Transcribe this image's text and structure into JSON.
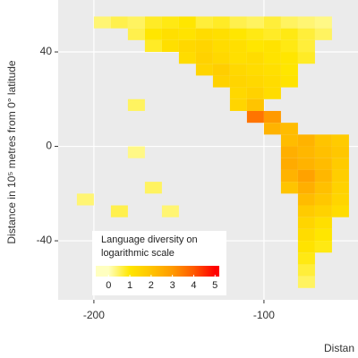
{
  "chart_data": {
    "type": "heatmap",
    "ylabel": "Distance in 10⁵ metres from 0° latitude",
    "xlabel": "Distan",
    "xlim": [
      -221,
      -44.7
    ],
    "ylim": [
      -65,
      62
    ],
    "xticks": [
      -200,
      -100
    ],
    "yticks": [
      40,
      0,
      -40
    ],
    "grid": true,
    "cells": [
      [
        -195,
        52.5,
        0.4
      ],
      [
        -185,
        52.5,
        0.6
      ],
      [
        -175,
        52.5,
        0.5
      ],
      [
        -165,
        52.5,
        0.8
      ],
      [
        -155,
        52.5,
        0.9
      ],
      [
        -145,
        52.5,
        1
      ],
      [
        -135,
        52.5,
        0.7
      ],
      [
        -125,
        52.5,
        0.8
      ],
      [
        -115,
        52.5,
        0.6
      ],
      [
        -105,
        52.5,
        0.5
      ],
      [
        -95,
        52.5,
        0.7
      ],
      [
        -85,
        52.5,
        0.5
      ],
      [
        -75,
        52.5,
        0.4
      ],
      [
        -65,
        52.5,
        0.3
      ],
      [
        -175,
        47.5,
        0.6
      ],
      [
        -165,
        47.5,
        1
      ],
      [
        -155,
        47.5,
        1.2
      ],
      [
        -145,
        47.5,
        1.1
      ],
      [
        -135,
        47.5,
        1.3
      ],
      [
        -125,
        47.5,
        1.2
      ],
      [
        -115,
        47.5,
        1
      ],
      [
        -105,
        47.5,
        0.9
      ],
      [
        -95,
        47.5,
        0.8
      ],
      [
        -85,
        47.5,
        0.9
      ],
      [
        -75,
        47.5,
        0.7
      ],
      [
        -65,
        47.5,
        0.5
      ],
      [
        -165,
        42.5,
        0.8
      ],
      [
        -155,
        42.5,
        1.2
      ],
      [
        -145,
        42.5,
        1.4
      ],
      [
        -135,
        42.5,
        1.5
      ],
      [
        -125,
        42.5,
        1.3
      ],
      [
        -115,
        42.5,
        1.2
      ],
      [
        -105,
        42.5,
        1
      ],
      [
        -95,
        42.5,
        1.1
      ],
      [
        -85,
        42.5,
        0.9
      ],
      [
        -75,
        42.5,
        0.7
      ],
      [
        -145,
        37.5,
        1.3
      ],
      [
        -135,
        37.5,
        1.6
      ],
      [
        -125,
        37.5,
        1.4
      ],
      [
        -115,
        37.5,
        1.2
      ],
      [
        -105,
        37.5,
        1.3
      ],
      [
        -95,
        37.5,
        1.1
      ],
      [
        -85,
        37.5,
        1
      ],
      [
        -75,
        37.5,
        0.8
      ],
      [
        -135,
        32.5,
        1.5
      ],
      [
        -125,
        32.5,
        1.7
      ],
      [
        -115,
        32.5,
        1.4
      ],
      [
        -105,
        32.5,
        1.3
      ],
      [
        -95,
        32.5,
        1.2
      ],
      [
        -85,
        32.5,
        1
      ],
      [
        -125,
        27.5,
        1.6
      ],
      [
        -115,
        27.5,
        1.5
      ],
      [
        -105,
        27.5,
        1.4
      ],
      [
        -95,
        27.5,
        1.3
      ],
      [
        -85,
        27.5,
        1.1
      ],
      [
        -115,
        22.5,
        1.4
      ],
      [
        -105,
        22.5,
        1.6
      ],
      [
        -95,
        22.5,
        1.3
      ],
      [
        -175,
        17.5,
        0.5
      ],
      [
        -115,
        17.5,
        1.5
      ],
      [
        -105,
        17.5,
        2
      ],
      [
        -105,
        12.5,
        3.6
      ],
      [
        -95,
        12.5,
        3
      ],
      [
        -95,
        7.5,
        2.4
      ],
      [
        -85,
        7.5,
        2.2
      ],
      [
        -85,
        2.5,
        2.2
      ],
      [
        -75,
        2.5,
        2.4
      ],
      [
        -65,
        2.5,
        2
      ],
      [
        -55,
        2.5,
        1.8
      ],
      [
        -85,
        -2.5,
        2.5
      ],
      [
        -75,
        -2.5,
        2.3
      ],
      [
        -65,
        -2.5,
        2.1
      ],
      [
        -55,
        -2.5,
        1.9
      ],
      [
        -85,
        -7.5,
        2.6
      ],
      [
        -75,
        -7.5,
        2.4
      ],
      [
        -65,
        -7.5,
        2.2
      ],
      [
        -55,
        -7.5,
        1.8
      ],
      [
        -85,
        -12.5,
        2.4
      ],
      [
        -75,
        -12.5,
        2.8
      ],
      [
        -65,
        -12.5,
        2.3
      ],
      [
        -55,
        -12.5,
        1.7
      ],
      [
        -85,
        -17.5,
        2
      ],
      [
        -75,
        -17.5,
        2.5
      ],
      [
        -65,
        -17.5,
        2.1
      ],
      [
        -55,
        -17.5,
        1.6
      ],
      [
        -75,
        -22.5,
        2.2
      ],
      [
        -65,
        -22.5,
        1.9
      ],
      [
        -55,
        -22.5,
        1.5
      ],
      [
        -75,
        -27.5,
        1.8
      ],
      [
        -65,
        -27.5,
        1.6
      ],
      [
        -55,
        -27.5,
        1.3
      ],
      [
        -75,
        -32.5,
        1.5
      ],
      [
        -65,
        -32.5,
        1.2
      ],
      [
        -75,
        -37.5,
        1.3
      ],
      [
        -65,
        -37.5,
        1
      ],
      [
        -75,
        -42.5,
        1.1
      ],
      [
        -65,
        -42.5,
        0.9
      ],
      [
        -75,
        -47.5,
        0.9
      ],
      [
        -75,
        -52.5,
        0.7
      ],
      [
        -75,
        -57.5,
        0.5
      ],
      [
        -205,
        -22.5,
        0.4
      ],
      [
        -185,
        -27.5,
        0.6
      ],
      [
        -165,
        -17.5,
        0.5
      ],
      [
        -155,
        -27.5,
        0.4
      ],
      [
        -175,
        -2.5,
        0.3
      ]
    ],
    "legend_title": [
      "Language diversity on",
      "logarithmic scale"
    ],
    "clim": [
      -0.6,
      5.2
    ],
    "colorbar_ticks": [
      0,
      1,
      2,
      3,
      4,
      5
    ],
    "colors": [
      "#ffffc0",
      "#ffe600",
      "#ffc400",
      "#ff9a00",
      "#ff5a00",
      "#ff0000"
    ]
  }
}
